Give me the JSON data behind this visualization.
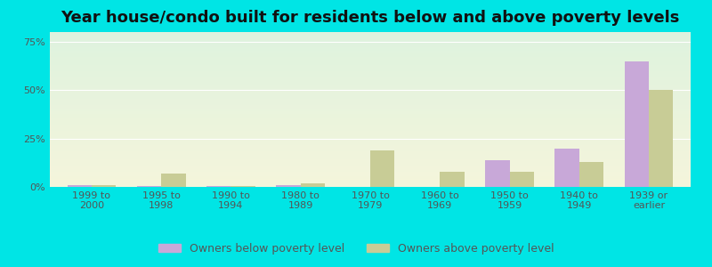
{
  "title": "Year house/condo built for residents below and above poverty levels",
  "categories": [
    "1999 to\n2000",
    "1995 to\n1998",
    "1990 to\n1994",
    "1980 to\n1989",
    "1970 to\n1979",
    "1960 to\n1969",
    "1950 to\n1959",
    "1940 to\n1949",
    "1939 or\nearlier"
  ],
  "below_poverty": [
    1.0,
    0.5,
    0.5,
    1.0,
    0.0,
    0.0,
    14.0,
    20.0,
    65.0
  ],
  "above_poverty": [
    1.0,
    7.0,
    0.5,
    2.0,
    19.0,
    8.0,
    8.0,
    13.0,
    50.0
  ],
  "below_color": "#c8a8d8",
  "above_color": "#c8cc96",
  "bg_color": "#00e5e5",
  "ylim": [
    0,
    80
  ],
  "yticks": [
    0,
    25,
    50,
    75
  ],
  "ytick_labels": [
    "0%",
    "25%",
    "50%",
    "75%"
  ],
  "legend_below": "Owners below poverty level",
  "legend_above": "Owners above poverty level",
  "title_fontsize": 13,
  "tick_fontsize": 8,
  "legend_fontsize": 9,
  "bar_width": 0.35
}
